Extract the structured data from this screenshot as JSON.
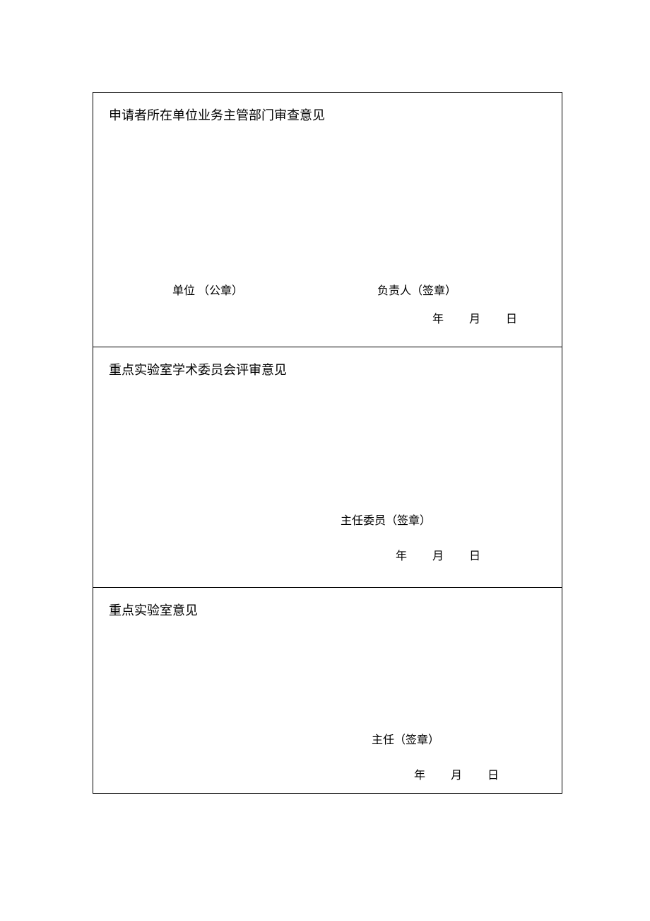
{
  "page": {
    "background_color": "#ffffff",
    "border_color": "#000000",
    "text_color": "#000000",
    "font_family": "SimSun",
    "title_fontsize": 18,
    "body_fontsize": 16
  },
  "sections": {
    "s1": {
      "title": "申请者所在单位业务主管部门审查意见",
      "unit_seal_label": "单位 （公章）",
      "person_seal_label": "负责人（签章）",
      "date_year": "年",
      "date_month": "月",
      "date_day": "日"
    },
    "s2": {
      "title": "重点实验室学术委员会评审意见",
      "chair_seal_label": "主任委员（签章）",
      "date_year": "年",
      "date_month": "月",
      "date_day": "日"
    },
    "s3": {
      "title": "重点实验室意见",
      "director_seal_label": "主任（签章）",
      "date_year": "年",
      "date_month": "月",
      "date_day": "日"
    }
  }
}
